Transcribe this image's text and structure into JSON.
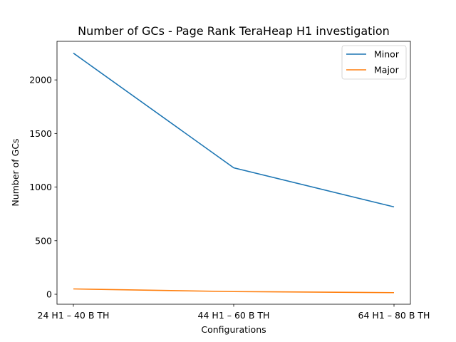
{
  "chart_data": {
    "type": "line",
    "title": "Number of GCs - Page Rank TeraHeap H1 investigation",
    "xlabel": "Configurations",
    "ylabel": "Number of GCs",
    "categories": [
      "24 H1 – 40 B TH",
      "44 H1 – 60 B TH",
      "64 H1 – 80 B TH"
    ],
    "series": [
      {
        "name": "Minor",
        "color": "#1f77b4",
        "values": [
          2250,
          1180,
          815
        ]
      },
      {
        "name": "Major",
        "color": "#ff7f0e",
        "values": [
          50,
          25,
          15
        ]
      }
    ],
    "ylim": [
      -93,
      2360
    ],
    "yticks": [
      0,
      500,
      1000,
      1500,
      2000
    ],
    "grid": false,
    "legend_position": "upper right"
  }
}
